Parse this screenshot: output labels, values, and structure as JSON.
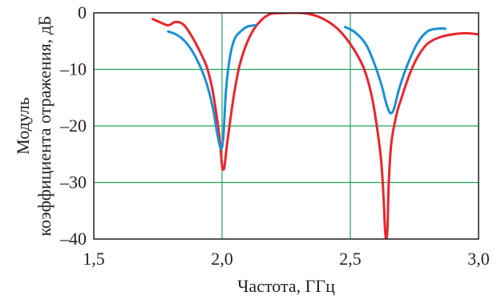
{
  "chart_data": {
    "type": "line",
    "title": "",
    "xlabel": "Частота, ГГц",
    "ylabel_lines": [
      "Модуль",
      "коэффициента отражения, дБ"
    ],
    "xlim": [
      1.5,
      3.0
    ],
    "ylim": [
      -40,
      0
    ],
    "x_ticks": [
      1.5,
      2.0,
      2.5,
      3.0
    ],
    "x_tick_labels": [
      "1,5",
      "2,0",
      "2,5",
      "3,0"
    ],
    "y_ticks": [
      0,
      -10,
      -20,
      -30,
      -40
    ],
    "y_tick_labels": [
      "0",
      "–10",
      "–20",
      "–30",
      "–40"
    ],
    "grid": true,
    "grid_color": "#1fa35a",
    "series": [
      {
        "color": "#e8262d",
        "segments": [
          [
            [
              1.73,
              -1.1
            ],
            [
              1.76,
              -1.7
            ],
            [
              1.79,
              -2.2
            ],
            [
              1.82,
              -1.6
            ],
            [
              1.85,
              -2.1
            ],
            [
              1.88,
              -4.0
            ],
            [
              1.91,
              -6.5
            ],
            [
              1.94,
              -9.5
            ],
            [
              1.96,
              -13.0
            ],
            [
              1.975,
              -17.0
            ],
            [
              1.99,
              -22.0
            ],
            [
              2.0,
              -27.0
            ],
            [
              2.005,
              -27.7
            ],
            [
              2.01,
              -27.0
            ],
            [
              2.02,
              -23.0
            ],
            [
              2.035,
              -18.0
            ],
            [
              2.05,
              -13.5
            ],
            [
              2.07,
              -9.0
            ],
            [
              2.1,
              -5.0
            ],
            [
              2.13,
              -2.5
            ],
            [
              2.16,
              -1.0
            ],
            [
              2.18,
              -0.4
            ],
            [
              2.2,
              -0.1
            ],
            [
              2.3,
              0.0
            ],
            [
              2.35,
              -0.3
            ],
            [
              2.4,
              -1.2
            ],
            [
              2.45,
              -2.8
            ],
            [
              2.5,
              -5.5
            ],
            [
              2.55,
              -9.5
            ],
            [
              2.58,
              -14.0
            ],
            [
              2.6,
              -19.0
            ],
            [
              2.62,
              -26.0
            ],
            [
              2.63,
              -33.0
            ],
            [
              2.635,
              -38.0
            ],
            [
              2.64,
              -40.0
            ],
            [
              2.645,
              -38.0
            ],
            [
              2.65,
              -30.0
            ],
            [
              2.66,
              -23.0
            ],
            [
              2.68,
              -18.0
            ],
            [
              2.7,
              -15.0
            ],
            [
              2.73,
              -11.0
            ],
            [
              2.76,
              -8.0
            ],
            [
              2.8,
              -5.5
            ],
            [
              2.85,
              -4.3
            ],
            [
              2.9,
              -3.8
            ],
            [
              2.95,
              -3.6
            ],
            [
              3.0,
              -3.8
            ]
          ]
        ]
      },
      {
        "color": "#1d8fd6",
        "segments": [
          [
            [
              1.79,
              -3.3
            ],
            [
              1.82,
              -3.8
            ],
            [
              1.85,
              -4.8
            ],
            [
              1.88,
              -6.5
            ],
            [
              1.91,
              -9.0
            ],
            [
              1.94,
              -12.5
            ],
            [
              1.965,
              -17.0
            ],
            [
              1.98,
              -21.0
            ],
            [
              1.995,
              -24.0
            ],
            [
              2.005,
              -22.0
            ],
            [
              2.015,
              -14.0
            ],
            [
              2.03,
              -8.0
            ],
            [
              2.05,
              -4.5
            ],
            [
              2.08,
              -3.0
            ],
            [
              2.1,
              -2.4
            ],
            [
              2.13,
              -2.2
            ]
          ],
          [
            [
              2.48,
              -2.5
            ],
            [
              2.52,
              -3.5
            ],
            [
              2.56,
              -5.5
            ],
            [
              2.59,
              -8.5
            ],
            [
              2.62,
              -12.5
            ],
            [
              2.64,
              -16.0
            ],
            [
              2.655,
              -17.7
            ],
            [
              2.67,
              -17.0
            ],
            [
              2.69,
              -13.5
            ],
            [
              2.72,
              -9.5
            ],
            [
              2.76,
              -5.5
            ],
            [
              2.8,
              -3.3
            ],
            [
              2.84,
              -2.8
            ],
            [
              2.87,
              -2.8
            ]
          ]
        ]
      }
    ]
  }
}
